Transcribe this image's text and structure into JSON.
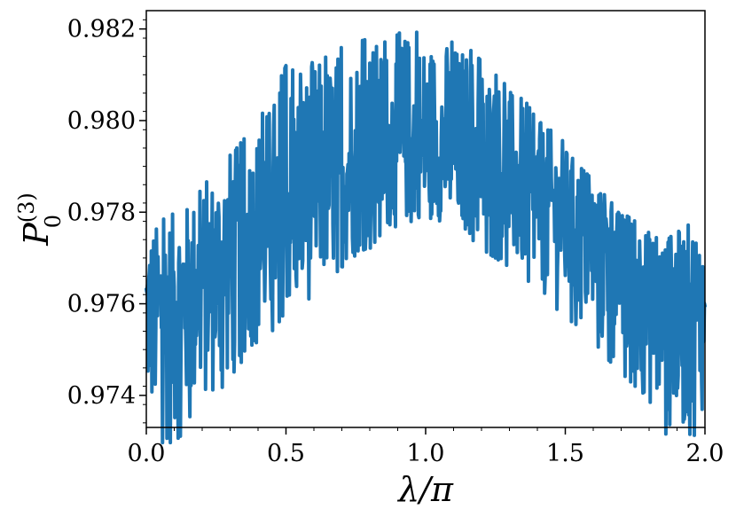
{
  "chart_data": {
    "type": "line",
    "xlabel": "λ/π",
    "ylabel": "P",
    "ylabel_superscript": "(3)",
    "ylabel_subscript": "0",
    "xlim": [
      0.0,
      2.0
    ],
    "ylim": [
      0.9733,
      0.9824
    ],
    "xticks": [
      0.0,
      0.5,
      1.0,
      1.5,
      2.0
    ],
    "xtick_labels": [
      "0.0",
      "0.5",
      "1.0",
      "1.5",
      "2.0"
    ],
    "yticks": [
      0.974,
      0.976,
      0.978,
      0.98,
      0.982
    ],
    "ytick_labels": [
      "0.974",
      "0.976",
      "0.978",
      "0.980",
      "0.982"
    ],
    "grid": false,
    "series": [
      {
        "color": "#1f77b4",
        "x": [
          0.0,
          0.05,
          0.1,
          0.15,
          0.2,
          0.25,
          0.3,
          0.35,
          0.4,
          0.45,
          0.5,
          0.55,
          0.6,
          0.65,
          0.7,
          0.75,
          0.8,
          0.85,
          0.9,
          0.95,
          1.0,
          1.05,
          1.1,
          1.15,
          1.2,
          1.25,
          1.3,
          1.35,
          1.4,
          1.45,
          1.5,
          1.55,
          1.6,
          1.65,
          1.7,
          1.75,
          1.8,
          1.85,
          1.9,
          1.95,
          2.0
        ],
        "mean": [
          0.9759,
          0.976,
          0.9762,
          0.9764,
          0.9766,
          0.9768,
          0.9771,
          0.9773,
          0.9775,
          0.9777,
          0.978,
          0.9782,
          0.9784,
          0.9786,
          0.9788,
          0.979,
          0.9791,
          0.9792,
          0.9793,
          0.9793,
          0.9793,
          0.9793,
          0.9793,
          0.9792,
          0.9791,
          0.979,
          0.9788,
          0.9786,
          0.9784,
          0.9782,
          0.978,
          0.9777,
          0.9775,
          0.9773,
          0.9771,
          0.9768,
          0.9766,
          0.9764,
          0.9762,
          0.976,
          0.9759
        ],
        "min": [
          0.9737,
          0.973,
          0.9728,
          0.9735,
          0.9738,
          0.974,
          0.9744,
          0.9748,
          0.9752,
          0.9754,
          0.9758,
          0.9758,
          0.9762,
          0.9765,
          0.9768,
          0.977,
          0.9772,
          0.9776,
          0.9777,
          0.9778,
          0.9779,
          0.9778,
          0.9776,
          0.9775,
          0.9772,
          0.977,
          0.9768,
          0.9766,
          0.9763,
          0.976,
          0.9757,
          0.9755,
          0.9752,
          0.9748,
          0.9745,
          0.9742,
          0.9738,
          0.9729,
          0.9735,
          0.9729,
          0.9738
        ],
        "max": [
          0.9776,
          0.9778,
          0.978,
          0.9782,
          0.9785,
          0.979,
          0.9794,
          0.9796,
          0.98,
          0.9805,
          0.9812,
          0.981,
          0.9813,
          0.9814,
          0.9816,
          0.9817,
          0.9818,
          0.9817,
          0.9819,
          0.982,
          0.9818,
          0.9818,
          0.9817,
          0.9816,
          0.9813,
          0.981,
          0.9807,
          0.9805,
          0.98,
          0.9798,
          0.9795,
          0.979,
          0.9787,
          0.9783,
          0.978,
          0.9778,
          0.9776,
          0.9773,
          0.9776,
          0.9778,
          0.9778
        ]
      }
    ]
  }
}
